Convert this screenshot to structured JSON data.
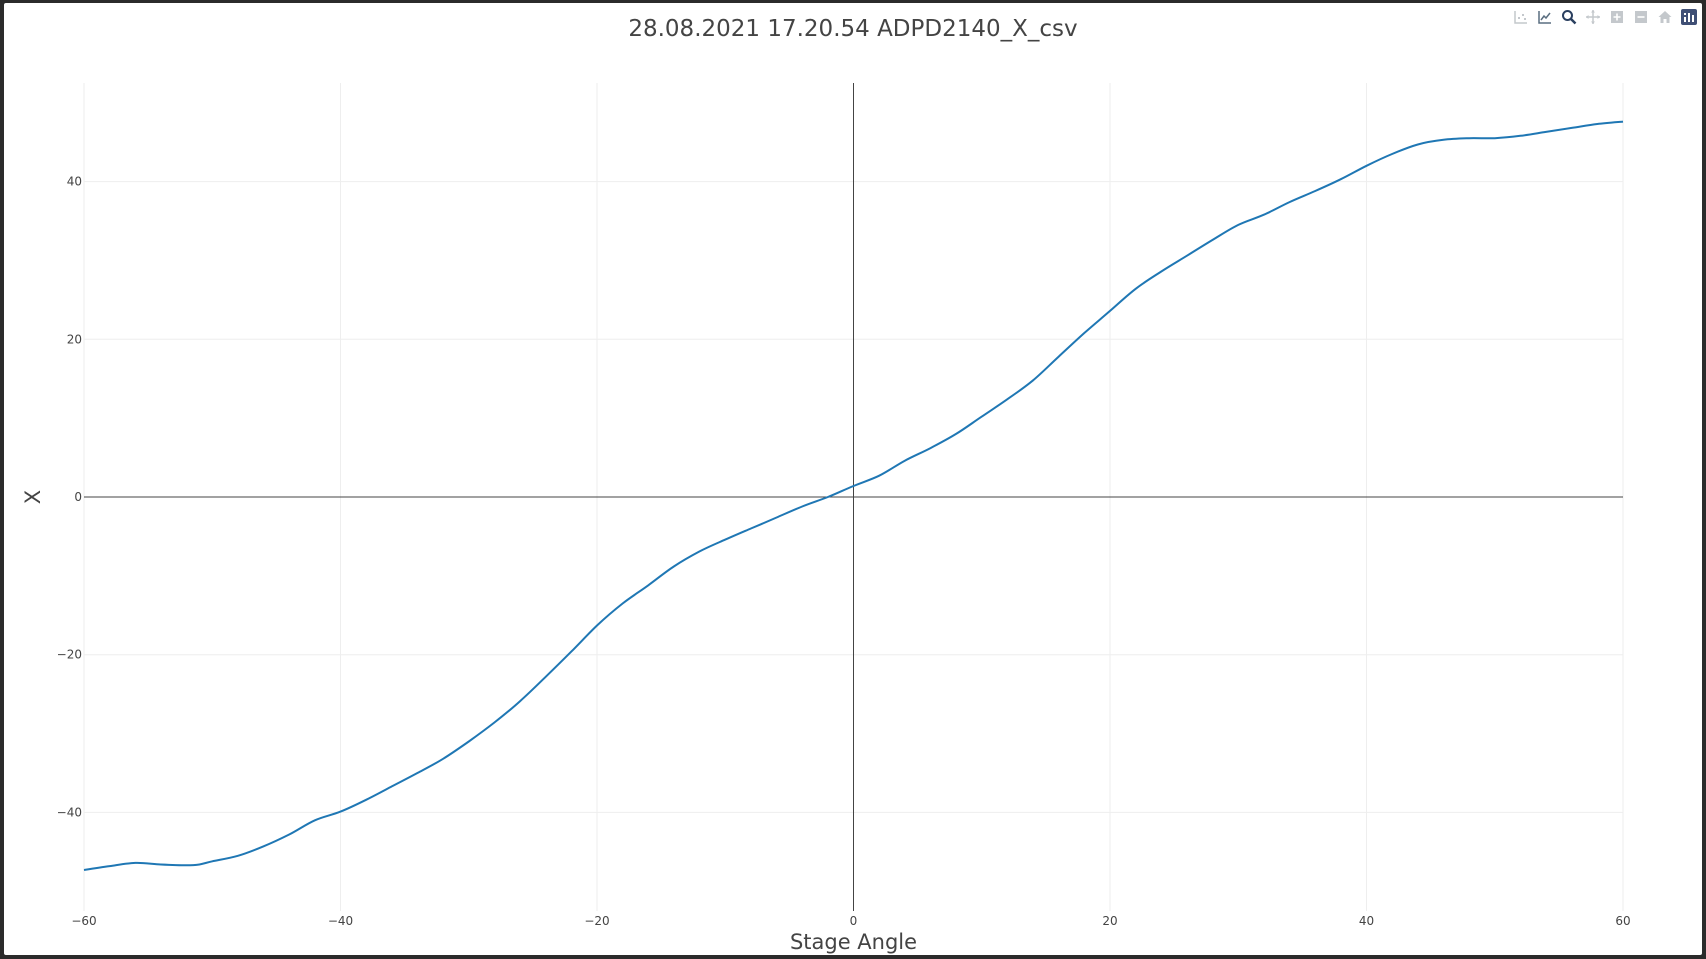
{
  "modebar": {
    "buttons": [
      {
        "icon": "compare-data-icon",
        "active": false
      },
      {
        "icon": "line-chart-icon",
        "active": false
      },
      {
        "icon": "zoom-icon",
        "active": true
      },
      {
        "icon": "pan-icon",
        "active": false
      },
      {
        "icon": "zoom-in-icon",
        "active": false
      },
      {
        "icon": "zoom-out-icon",
        "active": false
      },
      {
        "icon": "home-icon",
        "active": false
      },
      {
        "icon": "plotly-logo-icon",
        "active": true
      }
    ]
  },
  "colors": {
    "line": "#1f77b4",
    "grid": "#eeeeee",
    "zeroline": "#444444",
    "text": "#444444"
  },
  "chart_data": {
    "type": "line",
    "title": "28.08.2021 17.20.54 ADPD2140_X_csv",
    "xlabel": "Stage Angle",
    "ylabel": "X",
    "xlim": [
      -60,
      60
    ],
    "ylim": [
      -52.5,
      52.5
    ],
    "grid": true,
    "xticks": [
      -60,
      -40,
      -20,
      0,
      20,
      40,
      60
    ],
    "yticks": [
      -40,
      -20,
      0,
      20,
      40
    ],
    "xtick_labels": [
      "−60",
      "−40",
      "−20",
      "0",
      "20",
      "40",
      "60"
    ],
    "ytick_labels": [
      "−40",
      "−20",
      "0",
      "20",
      "40"
    ],
    "series": [
      {
        "x": [
          -60,
          -58,
          -56,
          -54,
          -52,
          -51,
          -50,
          -48,
          -46,
          -44,
          -42,
          -40,
          -38,
          -36,
          -34,
          -32,
          -30,
          -28,
          -26,
          -24,
          -22,
          -20,
          -18,
          -16,
          -14,
          -12,
          -10,
          -8,
          -6,
          -4,
          -2,
          0,
          2,
          4,
          6,
          8,
          10,
          12,
          14,
          16,
          18,
          20,
          22,
          24,
          26,
          28,
          30,
          32,
          34,
          36,
          38,
          40,
          42,
          44,
          46,
          48,
          50,
          52,
          54,
          56,
          58,
          60
        ],
        "y": [
          -47.3,
          -46.8,
          -46.4,
          -46.6,
          -46.7,
          -46.6,
          -46.2,
          -45.5,
          -44.3,
          -42.8,
          -41.0,
          -39.9,
          -38.4,
          -36.7,
          -35.0,
          -33.2,
          -31.0,
          -28.6,
          -25.9,
          -22.8,
          -19.6,
          -16.3,
          -13.5,
          -11.2,
          -8.8,
          -6.9,
          -5.4,
          -4.0,
          -2.6,
          -1.2,
          0.0,
          1.4,
          2.7,
          4.6,
          6.2,
          8.0,
          10.2,
          12.4,
          14.8,
          17.8,
          20.8,
          23.6,
          26.4,
          28.6,
          30.6,
          32.6,
          34.5,
          35.8,
          37.4,
          38.8,
          40.3,
          42.0,
          43.5,
          44.7,
          45.3,
          45.5,
          45.5,
          45.8,
          46.3,
          46.8,
          47.3,
          47.6
        ]
      }
    ]
  }
}
